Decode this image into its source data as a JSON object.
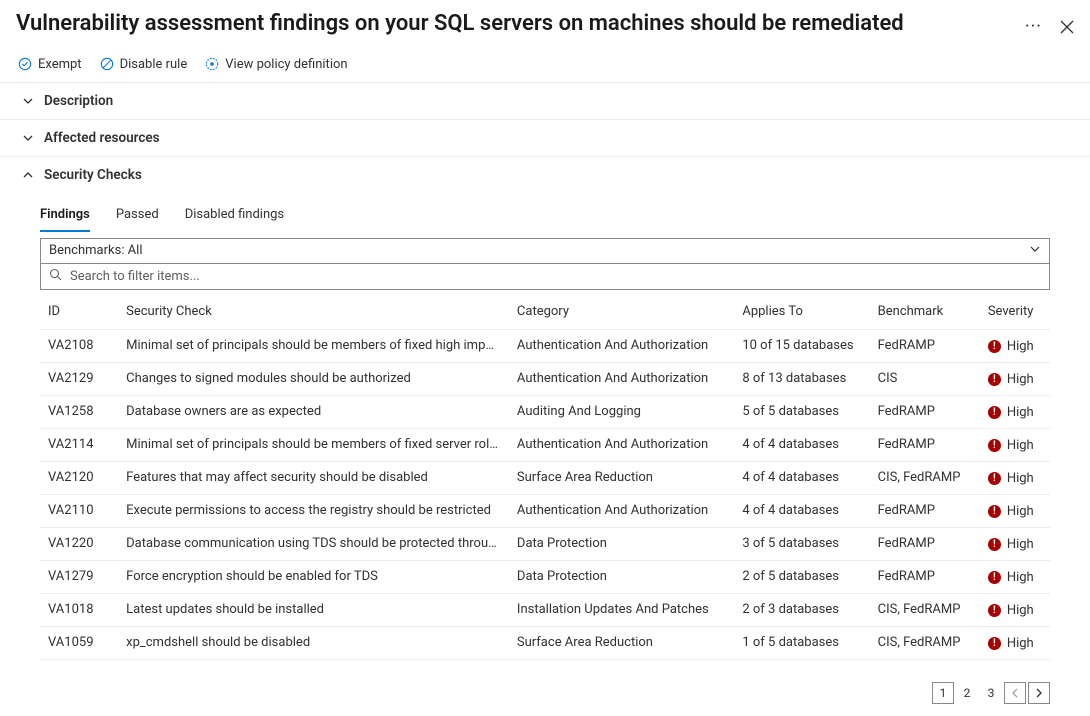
{
  "header": {
    "title": "Vulnerability assessment findings on your SQL servers on machines should be remediated"
  },
  "toolbar": {
    "exempt": "Exempt",
    "disable_rule": "Disable rule",
    "view_policy": "View policy definition"
  },
  "sections": {
    "description": {
      "label": "Description",
      "expanded": false
    },
    "affected": {
      "label": "Affected resources",
      "expanded": false
    },
    "security": {
      "label": "Security Checks",
      "expanded": true
    }
  },
  "tabs": {
    "findings": "Findings",
    "passed": "Passed",
    "disabled": "Disabled findings",
    "active": "findings"
  },
  "benchmarks": {
    "label": "Benchmarks: All"
  },
  "search": {
    "placeholder": "Search to filter items..."
  },
  "columns": {
    "id": "ID",
    "check": "Security Check",
    "category": "Category",
    "applies": "Applies To",
    "benchmark": "Benchmark",
    "severity": "Severity"
  },
  "severity": {
    "high_label": "High",
    "high_color": "#a80000"
  },
  "rows": [
    {
      "id": "VA2108",
      "check": "Minimal set of principals should be members of fixed high impac...",
      "category": "Authentication And Authorization",
      "applies": "10 of 15 databases",
      "benchmark": "FedRAMP",
      "severity": "High"
    },
    {
      "id": "VA2129",
      "check": "Changes to signed modules should be authorized",
      "category": "Authentication And Authorization",
      "applies": "8 of 13 databases",
      "benchmark": "CIS",
      "severity": "High"
    },
    {
      "id": "VA1258",
      "check": "Database owners are as expected",
      "category": "Auditing And Logging",
      "applies": "5 of 5 databases",
      "benchmark": "FedRAMP",
      "severity": "High"
    },
    {
      "id": "VA2114",
      "check": "Minimal set of principals should be members of fixed server roles",
      "category": "Authentication And Authorization",
      "applies": "4 of 4 databases",
      "benchmark": "FedRAMP",
      "severity": "High"
    },
    {
      "id": "VA2120",
      "check": "Features that may affect security should be disabled",
      "category": "Surface Area Reduction",
      "applies": "4 of 4 databases",
      "benchmark": "CIS, FedRAMP",
      "severity": "High"
    },
    {
      "id": "VA2110",
      "check": "Execute permissions to access the registry should be restricted",
      "category": "Authentication And Authorization",
      "applies": "4 of 4 databases",
      "benchmark": "FedRAMP",
      "severity": "High"
    },
    {
      "id": "VA1220",
      "check": "Database communication using TDS should be protected throug...",
      "category": "Data Protection",
      "applies": "3 of 5 databases",
      "benchmark": "FedRAMP",
      "severity": "High"
    },
    {
      "id": "VA1279",
      "check": "Force encryption should be enabled for TDS",
      "category": "Data Protection",
      "applies": "2 of 5 databases",
      "benchmark": "FedRAMP",
      "severity": "High"
    },
    {
      "id": "VA1018",
      "check": "Latest updates should be installed",
      "category": "Installation Updates And Patches",
      "applies": "2 of 3 databases",
      "benchmark": "CIS, FedRAMP",
      "severity": "High"
    },
    {
      "id": "VA1059",
      "check": "xp_cmdshell should be disabled",
      "category": "Surface Area Reduction",
      "applies": "1 of 5 databases",
      "benchmark": "CIS, FedRAMP",
      "severity": "High"
    }
  ],
  "pager": {
    "pages": [
      "1",
      "2",
      "3"
    ],
    "active": "1"
  },
  "colors": {
    "link": "#0078d4",
    "border": "#edebe9",
    "text": "#323130"
  }
}
